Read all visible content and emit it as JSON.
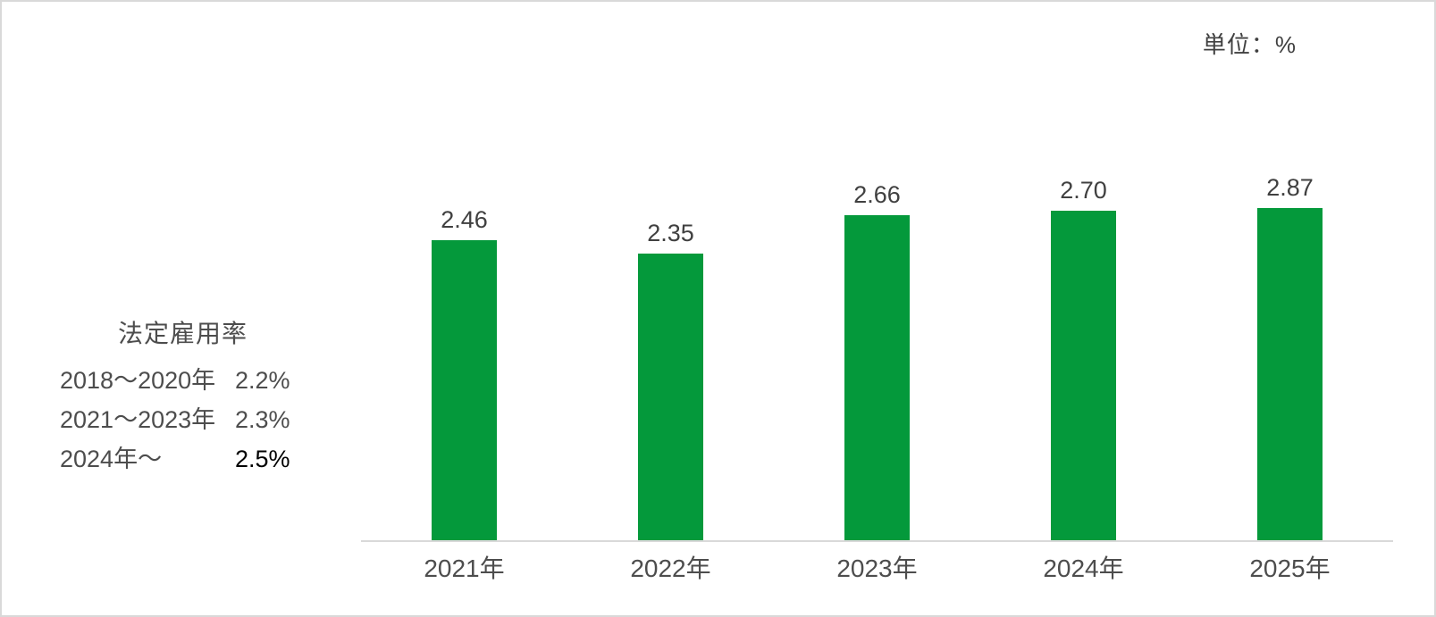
{
  "unit_label": "単位：%",
  "annotation": {
    "title": "法定雇用率",
    "rows": [
      {
        "label": "2018～2020年",
        "value": "2.2%",
        "emphasized": false
      },
      {
        "label": "2021～2023年",
        "value": "2.3%",
        "emphasized": false
      },
      {
        "label": "2024年～",
        "value": "2.5%",
        "emphasized": true
      }
    ]
  },
  "chart_data": {
    "type": "bar",
    "title": "",
    "categories": [
      "2021年",
      "2022年",
      "2023年",
      "2024年",
      "2025年"
    ],
    "values": [
      2.46,
      2.35,
      2.66,
      2.7,
      2.87
    ],
    "value_labels": [
      "2.46",
      "2.35",
      "2.66",
      "2.70",
      "2.87"
    ],
    "unit": "%",
    "xlabel": "",
    "ylabel": "",
    "ylim": [
      0,
      3
    ],
    "grid": false,
    "legend": "none",
    "bar_color": "#04993b",
    "axis_line_color": "#d9d9d9"
  }
}
